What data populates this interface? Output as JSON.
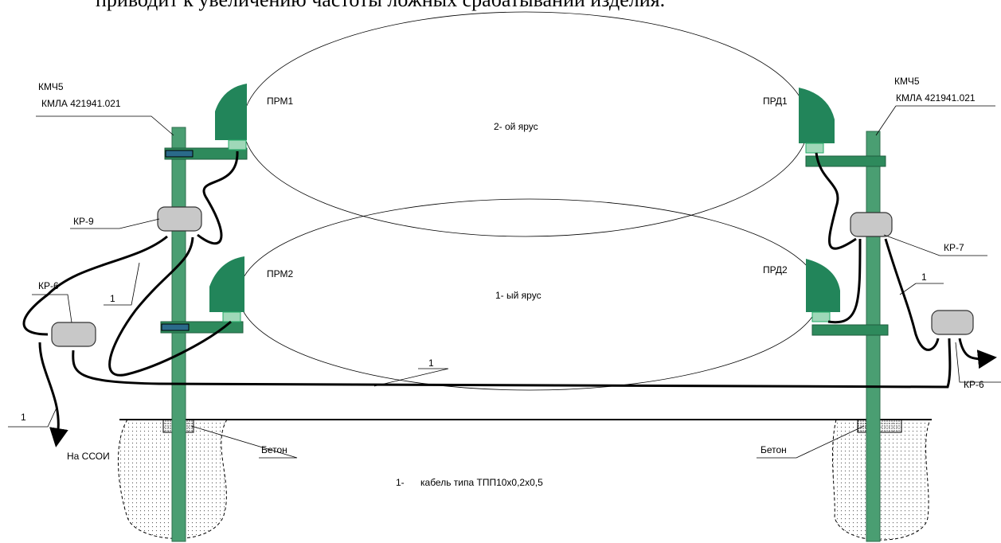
{
  "header_text": "приводит к увеличению частоты ложных срабатываний изделия.",
  "tiers": [
    "2- ой ярус",
    "1- ый ярус"
  ],
  "left_post": {
    "kit": "КМЧ5",
    "code": "КМЛА 421941.021",
    "receivers": [
      "ПРМ1",
      "ПРМ2"
    ],
    "box": "КР-9",
    "concrete": "Бетон"
  },
  "right_post": {
    "kit": "КМЧ5",
    "code": "КМЛА 421941.021",
    "transmitters": [
      "ПРД1",
      "ПРД2"
    ],
    "box": "КР-7",
    "concrete": "Бетон"
  },
  "junction_boxes": [
    "КР-6",
    "КР-6"
  ],
  "cable_marks": [
    "1",
    "1",
    "1",
    "1"
  ],
  "output": "На ССОИ",
  "legend": {
    "number": "1-",
    "text": "кабель типа ТПП10х0,2х0,5"
  }
}
